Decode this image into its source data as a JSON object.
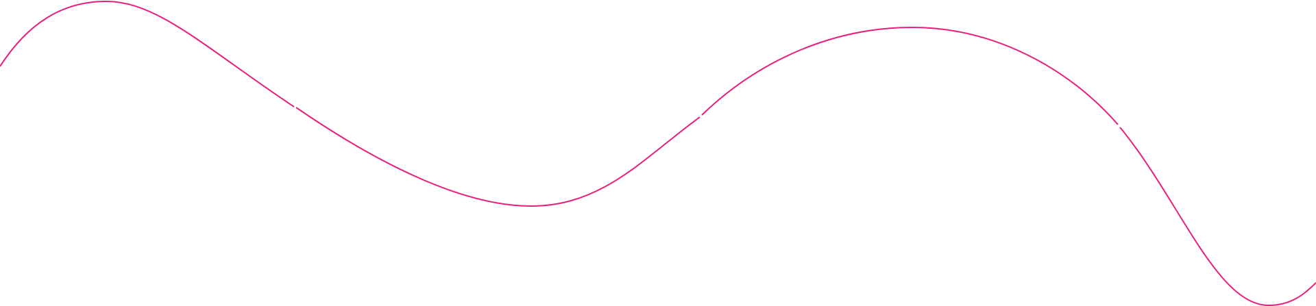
{
  "background_color": "#ffffff",
  "wave": {
    "stroke_color": "#e91e7a",
    "segments": 4
  }
}
